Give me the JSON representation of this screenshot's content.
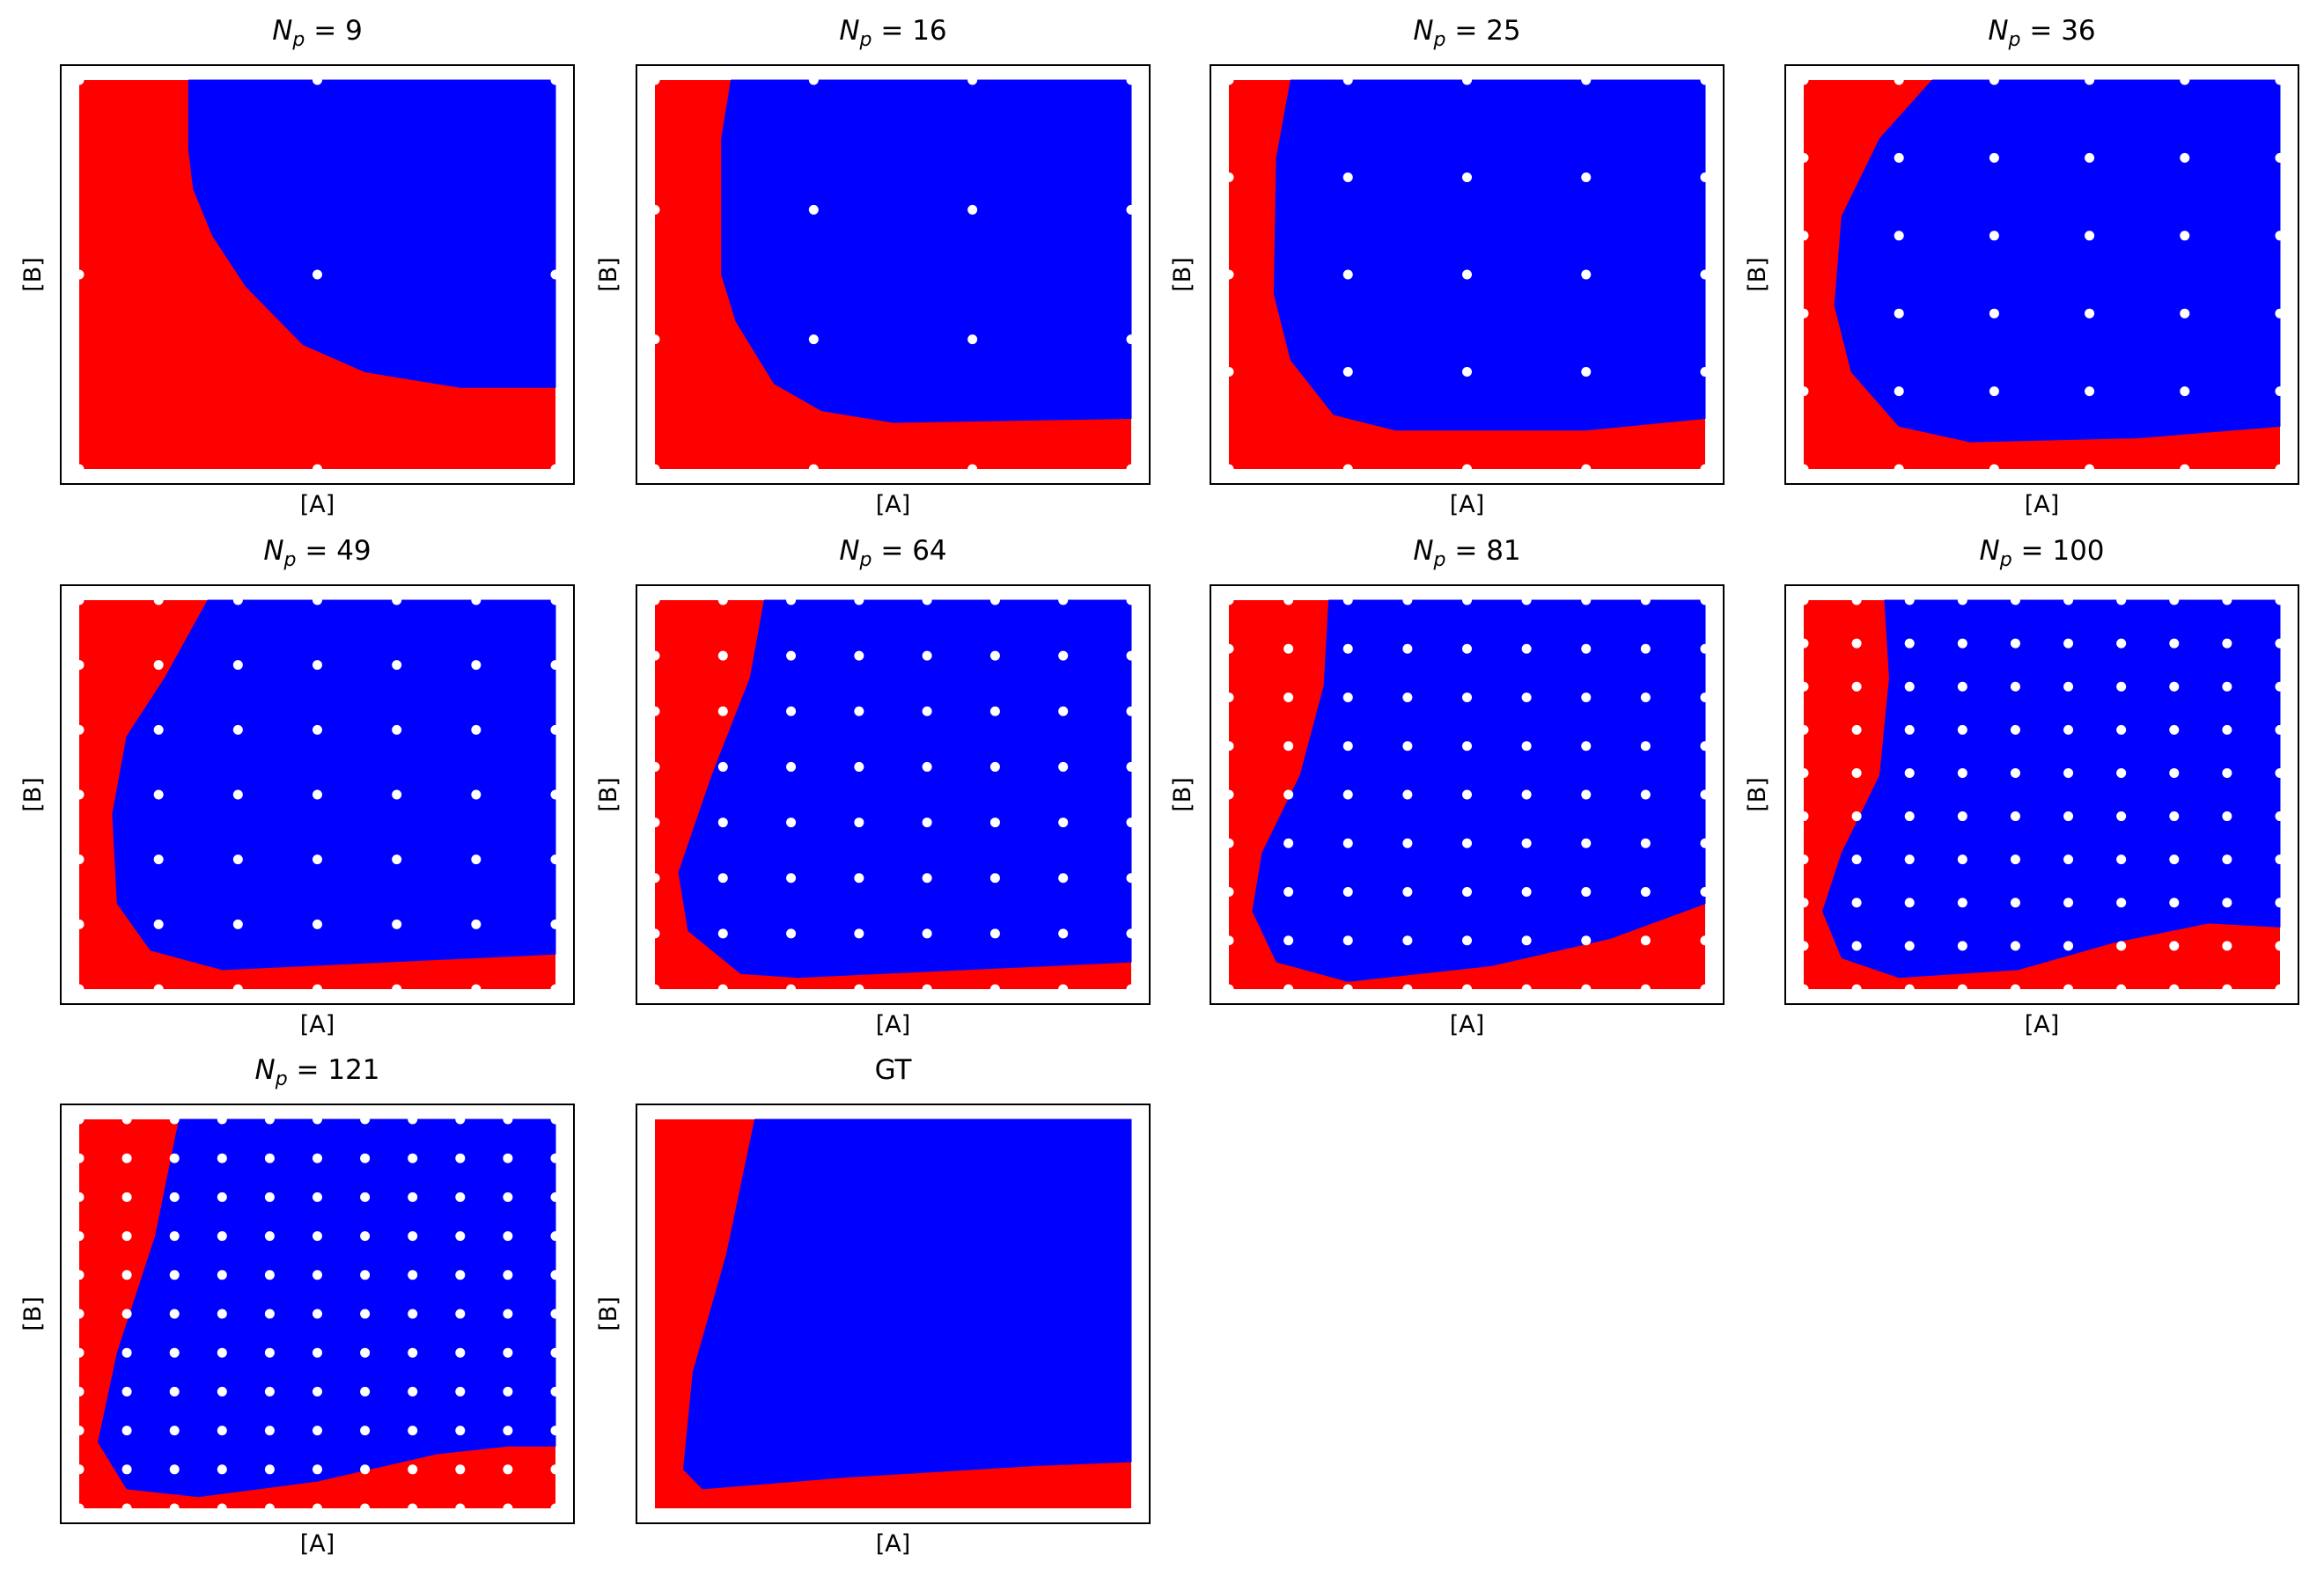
{
  "figure": {
    "colors": {
      "phase_1": "#ff0000",
      "phase_2": "#0000ff",
      "training_points": "#ffffff",
      "frame": "#000000"
    }
  },
  "chart_data": [
    {
      "type": "heatmap",
      "panel": 1,
      "title": {
        "symbol": "N",
        "subscript": "p",
        "eq": " = ",
        "value": "9"
      },
      "xlabel": "[A]",
      "ylabel": "[B]",
      "xlim": [
        0,
        1
      ],
      "ylim": [
        0,
        1
      ],
      "grid": false,
      "ticks": false,
      "regions": {
        "outside_boundary": "red",
        "inside_boundary": "blue"
      },
      "boundary": [
        [
          0.23,
          1.0
        ],
        [
          0.23,
          0.82
        ],
        [
          0.24,
          0.72
        ],
        [
          0.28,
          0.6
        ],
        [
          0.35,
          0.47
        ],
        [
          0.47,
          0.32
        ],
        [
          0.6,
          0.25
        ],
        [
          0.8,
          0.21
        ],
        [
          1.0,
          0.21
        ]
      ],
      "training_grid": 3
    },
    {
      "type": "heatmap",
      "panel": 2,
      "title": {
        "symbol": "N",
        "subscript": "p",
        "eq": " = ",
        "value": "16"
      },
      "xlabel": "[A]",
      "ylabel": "[B]",
      "xlim": [
        0,
        1
      ],
      "ylim": [
        0,
        1
      ],
      "grid": false,
      "ticks": false,
      "regions": {
        "outside_boundary": "red",
        "inside_boundary": "blue"
      },
      "boundary": [
        [
          0.16,
          1.0
        ],
        [
          0.14,
          0.85
        ],
        [
          0.14,
          0.5
        ],
        [
          0.17,
          0.38
        ],
        [
          0.25,
          0.22
        ],
        [
          0.35,
          0.15
        ],
        [
          0.5,
          0.12
        ],
        [
          1.0,
          0.13
        ]
      ],
      "training_grid": 4
    },
    {
      "type": "heatmap",
      "panel": 3,
      "title": {
        "symbol": "N",
        "subscript": "p",
        "eq": " = ",
        "value": "25"
      },
      "xlabel": "[A]",
      "ylabel": "[B]",
      "xlim": [
        0,
        1
      ],
      "ylim": [
        0,
        1
      ],
      "grid": false,
      "ticks": false,
      "regions": {
        "outside_boundary": "red",
        "inside_boundary": "blue"
      },
      "boundary": [
        [
          0.13,
          1.0
        ],
        [
          0.1,
          0.8
        ],
        [
          0.095,
          0.45
        ],
        [
          0.13,
          0.28
        ],
        [
          0.22,
          0.14
        ],
        [
          0.35,
          0.1
        ],
        [
          0.75,
          0.1
        ],
        [
          1.0,
          0.13
        ]
      ],
      "training_grid": 5
    },
    {
      "type": "heatmap",
      "panel": 4,
      "title": {
        "symbol": "N",
        "subscript": "p",
        "eq": " = ",
        "value": "36"
      },
      "xlabel": "[A]",
      "ylabel": "[B]",
      "xlim": [
        0,
        1
      ],
      "ylim": [
        0,
        1
      ],
      "grid": false,
      "ticks": false,
      "regions": {
        "outside_boundary": "red",
        "inside_boundary": "blue"
      },
      "boundary": [
        [
          0.27,
          1.0
        ],
        [
          0.16,
          0.85
        ],
        [
          0.08,
          0.65
        ],
        [
          0.065,
          0.42
        ],
        [
          0.1,
          0.25
        ],
        [
          0.2,
          0.11
        ],
        [
          0.35,
          0.07
        ],
        [
          0.7,
          0.08
        ],
        [
          1.0,
          0.11
        ]
      ],
      "training_grid": 6
    },
    {
      "type": "heatmap",
      "panel": 5,
      "title": {
        "symbol": "N",
        "subscript": "p",
        "eq": " = ",
        "value": "49"
      },
      "xlabel": "[A]",
      "ylabel": "[B]",
      "xlim": [
        0,
        1
      ],
      "ylim": [
        0,
        1
      ],
      "grid": false,
      "ticks": false,
      "regions": {
        "outside_boundary": "red",
        "inside_boundary": "blue"
      },
      "boundary": [
        [
          0.27,
          1.0
        ],
        [
          0.18,
          0.8
        ],
        [
          0.1,
          0.65
        ],
        [
          0.07,
          0.45
        ],
        [
          0.08,
          0.22
        ],
        [
          0.15,
          0.1
        ],
        [
          0.3,
          0.05
        ],
        [
          1.0,
          0.09
        ]
      ],
      "training_grid": 7
    },
    {
      "type": "heatmap",
      "panel": 6,
      "title": {
        "symbol": "N",
        "subscript": "p",
        "eq": " = ",
        "value": "64"
      },
      "xlabel": "[A]",
      "ylabel": "[B]",
      "xlim": [
        0,
        1
      ],
      "ylim": [
        0,
        1
      ],
      "grid": false,
      "ticks": false,
      "regions": {
        "outside_boundary": "red",
        "inside_boundary": "blue"
      },
      "boundary": [
        [
          0.23,
          1.0
        ],
        [
          0.2,
          0.8
        ],
        [
          0.12,
          0.55
        ],
        [
          0.05,
          0.3
        ],
        [
          0.07,
          0.15
        ],
        [
          0.18,
          0.04
        ],
        [
          0.3,
          0.03
        ],
        [
          1.0,
          0.07
        ]
      ],
      "training_grid": 8
    },
    {
      "type": "heatmap",
      "panel": 7,
      "title": {
        "symbol": "N",
        "subscript": "p",
        "eq": " = ",
        "value": "81"
      },
      "xlabel": "[A]",
      "ylabel": "[B]",
      "xlim": [
        0,
        1
      ],
      "ylim": [
        0,
        1
      ],
      "grid": false,
      "ticks": false,
      "regions": {
        "outside_boundary": "red",
        "inside_boundary": "blue"
      },
      "boundary": [
        [
          0.21,
          1.0
        ],
        [
          0.2,
          0.78
        ],
        [
          0.15,
          0.55
        ],
        [
          0.07,
          0.35
        ],
        [
          0.05,
          0.2
        ],
        [
          0.1,
          0.07
        ],
        [
          0.25,
          0.02
        ],
        [
          0.55,
          0.06
        ],
        [
          0.8,
          0.13
        ],
        [
          1.0,
          0.22
        ]
      ],
      "training_grid": 9
    },
    {
      "type": "heatmap",
      "panel": 8,
      "title": {
        "symbol": "N",
        "subscript": "p",
        "eq": " = ",
        "value": "100"
      },
      "xlabel": "[A]",
      "ylabel": "[B]",
      "xlim": [
        0,
        1
      ],
      "ylim": [
        0,
        1
      ],
      "grid": false,
      "ticks": false,
      "regions": {
        "outside_boundary": "red",
        "inside_boundary": "blue"
      },
      "boundary": [
        [
          0.17,
          1.0
        ],
        [
          0.18,
          0.8
        ],
        [
          0.16,
          0.55
        ],
        [
          0.08,
          0.35
        ],
        [
          0.04,
          0.2
        ],
        [
          0.08,
          0.08
        ],
        [
          0.2,
          0.03
        ],
        [
          0.45,
          0.05
        ],
        [
          0.65,
          0.12
        ],
        [
          0.85,
          0.17
        ],
        [
          1.0,
          0.16
        ]
      ],
      "training_grid": 10
    },
    {
      "type": "heatmap",
      "panel": 9,
      "title": {
        "symbol": "N",
        "subscript": "p",
        "eq": " = ",
        "value": "121"
      },
      "xlabel": "[A]",
      "ylabel": "[B]",
      "xlim": [
        0,
        1
      ],
      "ylim": [
        0,
        1
      ],
      "grid": false,
      "ticks": false,
      "regions": {
        "outside_boundary": "red",
        "inside_boundary": "blue"
      },
      "boundary": [
        [
          0.21,
          1.0
        ],
        [
          0.16,
          0.7
        ],
        [
          0.08,
          0.4
        ],
        [
          0.04,
          0.17
        ],
        [
          0.1,
          0.05
        ],
        [
          0.25,
          0.03
        ],
        [
          0.5,
          0.07
        ],
        [
          0.75,
          0.14
        ],
        [
          0.9,
          0.16
        ],
        [
          1.0,
          0.16
        ]
      ],
      "training_grid": 11
    },
    {
      "type": "heatmap",
      "panel": 10,
      "title": {
        "symbol": "",
        "subscript": "",
        "eq": "",
        "value": "GT"
      },
      "xlabel": "[A]",
      "ylabel": "[B]",
      "xlim": [
        0,
        1
      ],
      "ylim": [
        0,
        1
      ],
      "grid": false,
      "ticks": false,
      "regions": {
        "outside_boundary": "red",
        "inside_boundary": "blue"
      },
      "boundary": [
        [
          0.21,
          1.0
        ],
        [
          0.15,
          0.65
        ],
        [
          0.08,
          0.35
        ],
        [
          0.06,
          0.1
        ],
        [
          0.1,
          0.05
        ],
        [
          0.4,
          0.08
        ],
        [
          0.8,
          0.11
        ],
        [
          1.0,
          0.12
        ]
      ],
      "training_grid": 0
    }
  ]
}
